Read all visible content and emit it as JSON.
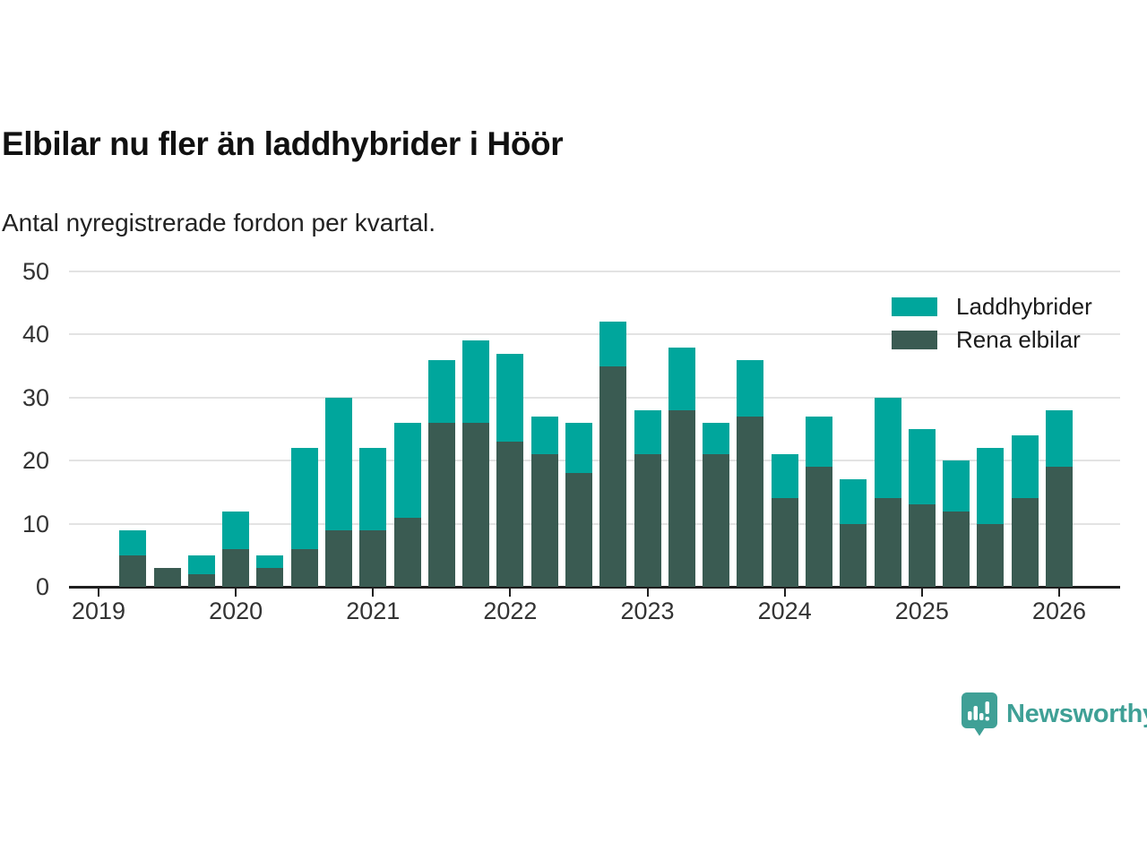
{
  "header": {
    "title": "Elbilar nu fler än laddhybrider i Höör",
    "subtitle": "Antal nyregistrerade fordon per kvartal."
  },
  "legend": {
    "position": "top-right",
    "items": [
      {
        "label": "Laddhybrider",
        "color": "#00A69C"
      },
      {
        "label": "Rena elbilar",
        "color": "#3A5B52"
      }
    ]
  },
  "branding": {
    "name": "Newsworthy",
    "icon": "newsworthy-bubble-chart-icon",
    "color": "#3FA096"
  },
  "colors": {
    "laddhybrider": "#00A69C",
    "rena_elbilar": "#3A5B52",
    "grid": "#E3E3E3",
    "axis": "#1F1F1F",
    "tick_text": "#333333"
  },
  "chart_data": {
    "type": "bar",
    "subtype": "stacked",
    "title": "Elbilar nu fler än laddhybrider i Höör",
    "xlabel": "",
    "ylabel": "Antal nyregistrerade fordon per kvartal",
    "categories": [
      "2019 Q2",
      "2019 Q3",
      "2019 Q4",
      "2020 Q1",
      "2020 Q2",
      "2020 Q3",
      "2020 Q4",
      "2021 Q1",
      "2021 Q2",
      "2021 Q3",
      "2021 Q4",
      "2022 Q1",
      "2022 Q2",
      "2022 Q3",
      "2022 Q4",
      "2023 Q1",
      "2023 Q2",
      "2023 Q3",
      "2023 Q4",
      "2024 Q1",
      "2024 Q2",
      "2024 Q3",
      "2024 Q4",
      "2025 Q1",
      "2025 Q2",
      "2025 Q3",
      "2025 Q4",
      "2026 Q1"
    ],
    "series": [
      {
        "name": "Rena elbilar",
        "color": "#3A5B52",
        "stack_order": 0,
        "values": [
          5,
          3,
          2,
          6,
          3,
          6,
          9,
          9,
          11,
          26,
          26,
          23,
          21,
          18,
          35,
          21,
          28,
          21,
          27,
          14,
          19,
          10,
          14,
          13,
          12,
          10,
          14,
          19
        ]
      },
      {
        "name": "Laddhybrider",
        "color": "#00A69C",
        "stack_order": 1,
        "values": [
          4,
          0,
          3,
          6,
          2,
          16,
          21,
          13,
          15,
          10,
          13,
          14,
          6,
          8,
          7,
          7,
          10,
          5,
          9,
          7,
          8,
          7,
          16,
          12,
          8,
          12,
          10,
          9
        ]
      }
    ],
    "totals": [
      9,
      3,
      5,
      12,
      5,
      22,
      30,
      22,
      26,
      36,
      39,
      37,
      27,
      26,
      42,
      28,
      38,
      26,
      36,
      21,
      27,
      17,
      30,
      25,
      20,
      22,
      24,
      28
    ],
    "x_tick_labels": [
      "2019",
      "2020",
      "2021",
      "2022",
      "2023",
      "2024",
      "2025",
      "2026"
    ],
    "y_ticks": [
      0,
      10,
      20,
      30,
      40,
      50
    ],
    "ylim": [
      0,
      50
    ],
    "grid": "horizontal",
    "legend_position": "top-right"
  }
}
